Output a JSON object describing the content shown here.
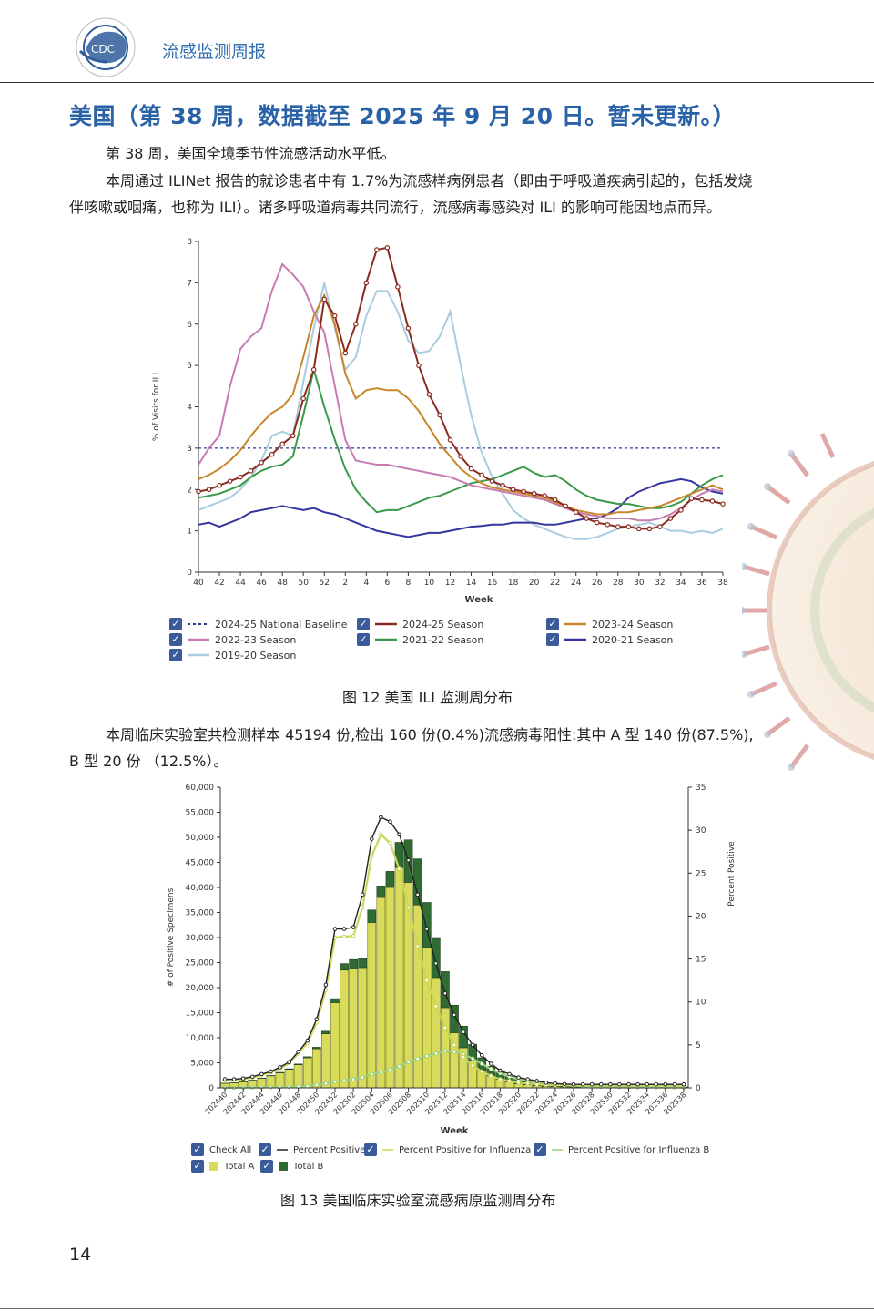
{
  "header": {
    "title": "流感监测周报",
    "logo_text": "CDC"
  },
  "section_title": "美国（第 38 周，数据截至 2025 年 9 月 20 日。暂未更新。）",
  "paragraphs": [
    "第 38 周，美国全境季节性流感活动水平低。",
    "本周通过 ILINet 报告的就诊患者中有 1.7%为流感样病例患者（即由于呼吸道疾病引起的，包括发烧",
    "伴咳嗽或咽痛，也称为 ILI）。诸多呼吸道病毒共同流行，流感病毒感染对 ILI 的影响可能因地点而异。"
  ],
  "paragraph2": [
    "本周临床实验室共检测样本 45194 份,检出 160 份(0.4%)流感病毒阳性:其中 A 型 140 份(87.5%),",
    "B 型 20 份 （12.5%）。"
  ],
  "figure12_caption": "图 12    美国 ILI 监测周分布",
  "figure13_caption": "图 13    美国临床实验室流感病原监测周分布",
  "page_number": "14",
  "chart_data": [
    {
      "type": "line",
      "ylabel": "% of Visits for ILI",
      "xlabel": "Week",
      "ylim": [
        0,
        8
      ],
      "yticks": [
        "0",
        "1",
        "2",
        "3",
        "4",
        "5",
        "6",
        "7",
        "8"
      ],
      "x_tick_labels": [
        "40",
        "42",
        "44",
        "46",
        "48",
        "50",
        "52",
        "2",
        "4",
        "6",
        "8",
        "10",
        "12",
        "14",
        "16",
        "18",
        "20",
        "22",
        "24",
        "26",
        "28",
        "30",
        "32",
        "34",
        "36",
        "38"
      ],
      "baseline": {
        "name": "2024-25 National Baseline",
        "value": 3.0,
        "color": "#2b3a8c"
      },
      "series": [
        {
          "name": "2024-25 Season",
          "color": "#8b2a1e",
          "markers": true,
          "values": [
            1.95,
            2.0,
            2.1,
            2.2,
            2.3,
            2.45,
            2.65,
            2.85,
            3.1,
            3.3,
            4.2,
            4.9,
            6.6,
            6.2,
            5.3,
            6.0,
            7.0,
            7.8,
            7.85,
            6.9,
            5.9,
            5.0,
            4.3,
            3.8,
            3.2,
            2.8,
            2.5,
            2.35,
            2.2,
            2.1,
            2.0,
            1.95,
            1.9,
            1.85,
            1.75,
            1.6,
            1.45,
            1.3,
            1.2,
            1.15,
            1.1,
            1.1,
            1.05,
            1.05,
            1.1,
            1.3,
            1.5,
            1.78,
            1.75,
            1.72,
            1.65
          ]
        },
        {
          "name": "2023-24 Season",
          "color": "#c8862a",
          "markers": false,
          "values": [
            2.25,
            2.35,
            2.5,
            2.7,
            2.95,
            3.3,
            3.6,
            3.85,
            4.0,
            4.3,
            5.2,
            6.2,
            6.7,
            6.0,
            4.8,
            4.2,
            4.4,
            4.45,
            4.4,
            4.4,
            4.2,
            3.9,
            3.5,
            3.1,
            2.8,
            2.5,
            2.3,
            2.15,
            2.05,
            2.0,
            1.95,
            1.9,
            1.85,
            1.8,
            1.7,
            1.6,
            1.5,
            1.45,
            1.4,
            1.4,
            1.45,
            1.45,
            1.5,
            1.55,
            1.6,
            1.7,
            1.8,
            1.9,
            2.0,
            2.1,
            2.0
          ]
        },
        {
          "name": "2022-23 Season",
          "color": "#c77bb2",
          "markers": false,
          "values": [
            2.6,
            3.0,
            3.3,
            4.5,
            5.4,
            5.7,
            5.9,
            6.8,
            7.45,
            7.2,
            6.9,
            6.3,
            5.8,
            4.5,
            3.2,
            2.7,
            2.65,
            2.6,
            2.6,
            2.55,
            2.5,
            2.45,
            2.4,
            2.35,
            2.3,
            2.2,
            2.1,
            2.05,
            2.0,
            1.95,
            1.9,
            1.85,
            1.8,
            1.75,
            1.65,
            1.55,
            1.45,
            1.4,
            1.35,
            1.3,
            1.3,
            1.3,
            1.25,
            1.25,
            1.3,
            1.4,
            1.55,
            1.75,
            1.9,
            2.0,
            1.95
          ]
        },
        {
          "name": "2021-22 Season",
          "color": "#3a9a4a",
          "markers": false,
          "values": [
            1.8,
            1.85,
            1.9,
            2.0,
            2.1,
            2.3,
            2.45,
            2.55,
            2.6,
            2.8,
            3.8,
            4.9,
            4.0,
            3.2,
            2.5,
            2.0,
            1.7,
            1.45,
            1.5,
            1.5,
            1.6,
            1.7,
            1.8,
            1.85,
            1.95,
            2.05,
            2.15,
            2.2,
            2.25,
            2.35,
            2.45,
            2.55,
            2.4,
            2.3,
            2.35,
            2.2,
            2.0,
            1.85,
            1.75,
            1.7,
            1.65,
            1.65,
            1.6,
            1.55,
            1.55,
            1.6,
            1.7,
            1.9,
            2.1,
            2.25,
            2.35
          ]
        },
        {
          "name": "2020-21 Season",
          "color": "#3535a0",
          "markers": false,
          "values": [
            1.15,
            1.2,
            1.1,
            1.2,
            1.3,
            1.45,
            1.5,
            1.55,
            1.6,
            1.55,
            1.5,
            1.55,
            1.45,
            1.4,
            1.3,
            1.2,
            1.1,
            1.0,
            0.95,
            0.9,
            0.85,
            0.9,
            0.95,
            0.95,
            1.0,
            1.05,
            1.1,
            1.12,
            1.15,
            1.15,
            1.2,
            1.2,
            1.2,
            1.15,
            1.15,
            1.2,
            1.25,
            1.3,
            1.3,
            1.4,
            1.55,
            1.8,
            1.95,
            2.05,
            2.15,
            2.2,
            2.25,
            2.2,
            2.05,
            1.95,
            1.9
          ]
        },
        {
          "name": "2019-20 Season",
          "color": "#a9cde0",
          "markers": false,
          "values": [
            1.5,
            1.6,
            1.7,
            1.8,
            2.0,
            2.3,
            2.7,
            3.3,
            3.4,
            3.3,
            4.6,
            5.9,
            7.0,
            5.9,
            4.9,
            5.2,
            6.2,
            6.8,
            6.8,
            6.3,
            5.6,
            5.3,
            5.35,
            5.7,
            6.3,
            5.0,
            3.8,
            2.9,
            2.3,
            1.9,
            1.5,
            1.3,
            1.15,
            1.05,
            0.95,
            0.85,
            0.8,
            0.8,
            0.85,
            0.95,
            1.05,
            1.1,
            1.15,
            1.2,
            1.1,
            1.0,
            1.0,
            0.95,
            1.0,
            0.95,
            1.05
          ]
        }
      ],
      "legend": [
        "2024-25 National Baseline",
        "2024-25 Season",
        "2023-24 Season",
        "2022-23 Season",
        "2021-22 Season",
        "2020-21 Season",
        "2019-20 Season"
      ]
    },
    {
      "type": "bar",
      "xlabel": "Week",
      "ylabel": "# of Positive Specimens",
      "y2label": "Percent Positive",
      "ylim": [
        0,
        60000
      ],
      "y2lim": [
        0,
        35
      ],
      "yticks": [
        "0",
        "5,000",
        "10,000",
        "15,000",
        "20,000",
        "25,000",
        "30,000",
        "35,000",
        "40,000",
        "45,000",
        "50,000",
        "55,000",
        "60,000"
      ],
      "y2ticks": [
        "0",
        "5",
        "10",
        "15",
        "20",
        "25",
        "30",
        "35"
      ],
      "x_tick_labels": [
        "202440",
        "202442",
        "202444",
        "202446",
        "202448",
        "202450",
        "202452",
        "202502",
        "202504",
        "202506",
        "202508",
        "202510",
        "202512",
        "202514",
        "202516",
        "202518",
        "202520",
        "202522",
        "202524",
        "202526",
        "202528",
        "202530",
        "202532",
        "202534",
        "202536",
        "202538"
      ],
      "total_a": [
        900,
        1000,
        1200,
        1500,
        1900,
        2400,
        3000,
        3700,
        4600,
        6000,
        7800,
        10800,
        17000,
        23500,
        23800,
        24000,
        33000,
        38000,
        40000,
        44000,
        41000,
        36500,
        28000,
        22000,
        16000,
        11000,
        8000,
        5500,
        3500,
        2400,
        1700,
        1200,
        800,
        600,
        400,
        300,
        250,
        200,
        160,
        140,
        130,
        120,
        120,
        120,
        120,
        120,
        120,
        130,
        130,
        140,
        140
      ],
      "total_b": [
        20,
        20,
        30,
        40,
        50,
        60,
        80,
        100,
        150,
        200,
        300,
        500,
        800,
        1300,
        1800,
        1800,
        2500,
        2300,
        3200,
        5000,
        8500,
        9200,
        9000,
        8000,
        7200,
        5500,
        4300,
        3200,
        2500,
        1900,
        1500,
        1100,
        900,
        700,
        500,
        400,
        300,
        250,
        200,
        150,
        120,
        100,
        80,
        60,
        50,
        40,
        30,
        25,
        20,
        20,
        20
      ],
      "percent_positive": [
        1.0,
        1.0,
        1.1,
        1.3,
        1.6,
        1.9,
        2.4,
        3.0,
        4.2,
        5.5,
        8.0,
        12.0,
        18.5,
        18.5,
        18.7,
        22.5,
        29.0,
        31.5,
        31.0,
        29.5,
        26.5,
        22.5,
        18.5,
        14.5,
        11.0,
        8.5,
        6.5,
        5.0,
        3.8,
        2.8,
        2.0,
        1.6,
        1.2,
        1.0,
        0.8,
        0.6,
        0.5,
        0.45,
        0.4,
        0.4,
        0.4,
        0.4,
        0.4,
        0.4,
        0.4,
        0.4,
        0.4,
        0.4,
        0.4,
        0.4,
        0.4
      ],
      "percent_positive_a": [
        0.9,
        0.95,
        1.0,
        1.2,
        1.5,
        1.8,
        2.2,
        2.9,
        4.0,
        5.2,
        7.6,
        11.4,
        17.5,
        17.6,
        17.7,
        21.0,
        27.0,
        29.5,
        28.5,
        25.5,
        21.0,
        16.5,
        12.5,
        9.5,
        7.0,
        5.0,
        3.6,
        2.6,
        1.9,
        1.4,
        1.0,
        0.8,
        0.6,
        0.5,
        0.4,
        0.35,
        0.3,
        0.3,
        0.3,
        0.3,
        0.3,
        0.3,
        0.3,
        0.3,
        0.3,
        0.3,
        0.3,
        0.3,
        0.3,
        0.3,
        0.3
      ],
      "percent_positive_b": [
        0.02,
        0.02,
        0.03,
        0.04,
        0.05,
        0.06,
        0.08,
        0.1,
        0.15,
        0.2,
        0.35,
        0.5,
        0.7,
        0.9,
        1.0,
        1.2,
        1.6,
        1.8,
        2.1,
        2.5,
        3.0,
        3.4,
        3.7,
        4.0,
        4.3,
        4.2,
        3.9,
        3.4,
        2.8,
        2.2,
        1.7,
        1.3,
        1.0,
        0.8,
        0.6,
        0.45,
        0.35,
        0.3,
        0.25,
        0.2,
        0.15,
        0.12,
        0.1,
        0.08,
        0.07,
        0.06,
        0.05,
        0.05,
        0.05,
        0.05,
        0.05
      ],
      "colors": {
        "total_a": "#d8dc5a",
        "total_b": "#2f6b33",
        "percent_positive": "#222222",
        "percent_positive_a": "#c9d65a",
        "percent_positive_b": "#9cd07a"
      },
      "legend": [
        "Check All",
        "Percent Positive",
        "Percent Positive for Influenza A",
        "Percent Positive for Influenza B",
        "Total A",
        "Total B"
      ]
    }
  ]
}
